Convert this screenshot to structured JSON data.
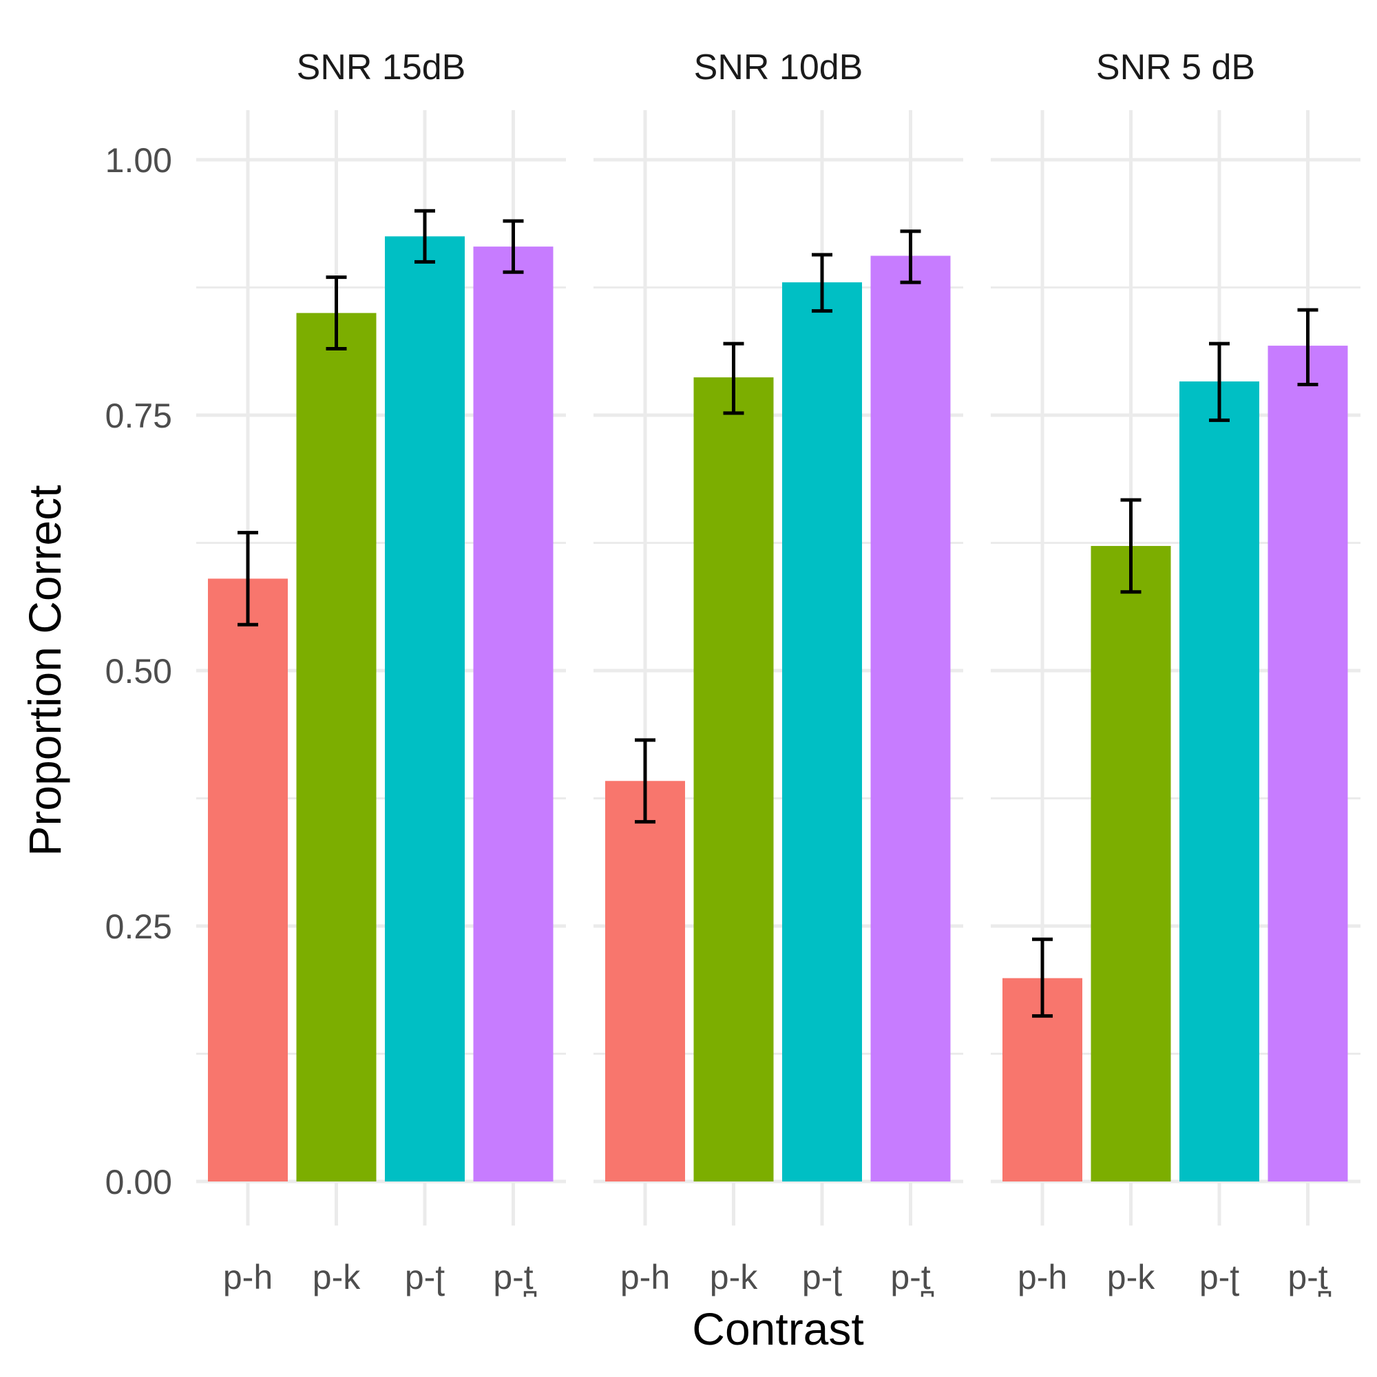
{
  "chart_data": {
    "type": "bar",
    "xlabel": "Contrast",
    "ylabel": "Proportion Correct",
    "ylim": [
      0,
      1.05
    ],
    "yticks": [
      "0.00",
      "0.25",
      "0.50",
      "0.75",
      "1.00"
    ],
    "ytick_values": [
      0,
      0.25,
      0.5,
      0.75,
      1.0
    ],
    "categories": [
      "p-h",
      "p-k",
      "p-ʈ",
      "p-t̪"
    ],
    "colors": [
      "#F8766D",
      "#7CAE00",
      "#00BFC4",
      "#C77CFF"
    ],
    "grid": true,
    "legend": "none",
    "panels": [
      {
        "title": "SNR 15dB",
        "values": [
          0.59,
          0.85,
          0.925,
          0.915
        ],
        "error_low": [
          0.545,
          0.815,
          0.9,
          0.89
        ],
        "error_high": [
          0.635,
          0.885,
          0.95,
          0.94
        ]
      },
      {
        "title": "SNR 10dB",
        "values": [
          0.392,
          0.787,
          0.88,
          0.906
        ],
        "error_low": [
          0.352,
          0.752,
          0.852,
          0.88
        ],
        "error_high": [
          0.432,
          0.82,
          0.907,
          0.93
        ]
      },
      {
        "title": "SNR 5 dB",
        "values": [
          0.199,
          0.622,
          0.783,
          0.818
        ],
        "error_low": [
          0.162,
          0.577,
          0.745,
          0.78
        ],
        "error_high": [
          0.237,
          0.667,
          0.82,
          0.853
        ]
      }
    ]
  }
}
